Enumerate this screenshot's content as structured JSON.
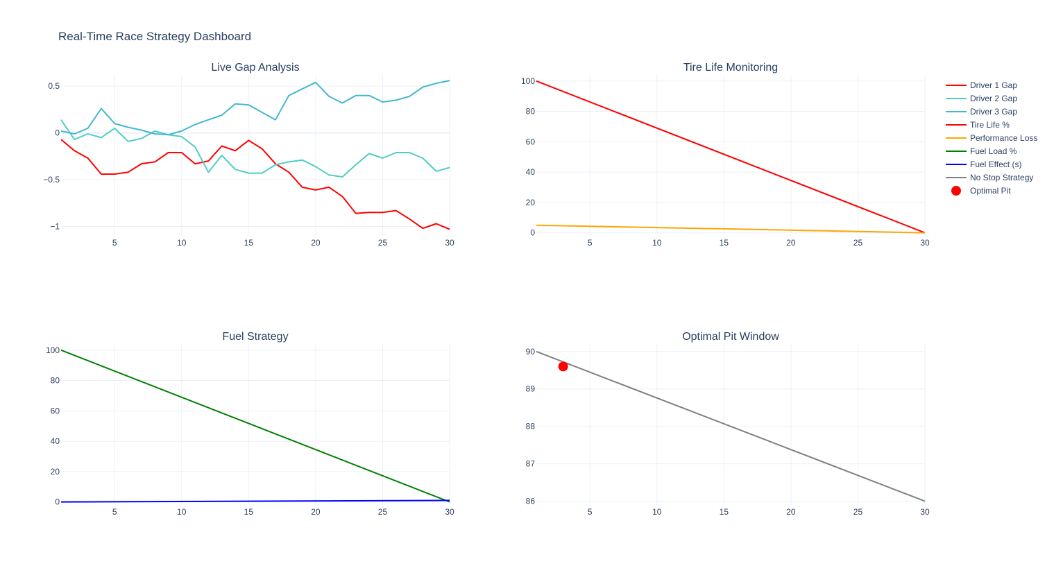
{
  "dashboard": {
    "title": "Real-Time Race Strategy Dashboard"
  },
  "legend": [
    {
      "name": "Driver 1 Gap",
      "color": "#ff0000",
      "symbol": "line"
    },
    {
      "name": "Driver 2 Gap",
      "color": "#4ecdc4",
      "symbol": "line"
    },
    {
      "name": "Driver 3 Gap",
      "color": "#45b7d1",
      "symbol": "line"
    },
    {
      "name": "Tire Life %",
      "color": "#ff0000",
      "symbol": "line"
    },
    {
      "name": "Performance Loss",
      "color": "#ffa500",
      "symbol": "line"
    },
    {
      "name": "Fuel Load %",
      "color": "#008000",
      "symbol": "line"
    },
    {
      "name": "Fuel Effect (s)",
      "color": "#0000ff",
      "symbol": "line"
    },
    {
      "name": "No Stop Strategy",
      "color": "#808080",
      "symbol": "line"
    },
    {
      "name": "Optimal Pit",
      "color": "#ff0000",
      "symbol": "marker"
    }
  ],
  "chart_data": [
    {
      "id": "gap",
      "type": "line",
      "title": "Live Gap Analysis",
      "xlim": [
        1,
        30
      ],
      "ylim": [
        -1.1,
        0.62
      ],
      "xticks": [
        5,
        10,
        15,
        20,
        25,
        30
      ],
      "yticks": [
        {
          "value": 0.5,
          "label": "0.5"
        },
        {
          "value": 0,
          "label": "0"
        },
        {
          "value": -0.5,
          "label": "−0.5"
        },
        {
          "value": -1,
          "label": "−1"
        }
      ],
      "series": [
        {
          "name": "Driver 1 Gap",
          "color": "#ff0000",
          "x": [
            1,
            2,
            3,
            4,
            5,
            6,
            7,
            8,
            9,
            10,
            11,
            12,
            13,
            14,
            15,
            16,
            17,
            18,
            19,
            20,
            21,
            22,
            23,
            24,
            25,
            26,
            27,
            28,
            29,
            30
          ],
          "y": [
            -0.07,
            -0.19,
            -0.27,
            -0.44,
            -0.44,
            -0.42,
            -0.33,
            -0.31,
            -0.21,
            -0.21,
            -0.33,
            -0.3,
            -0.14,
            -0.19,
            -0.08,
            -0.17,
            -0.33,
            -0.42,
            -0.58,
            -0.61,
            -0.58,
            -0.68,
            -0.86,
            -0.85,
            -0.85,
            -0.83,
            -0.92,
            -1.02,
            -0.97,
            -1.03
          ]
        },
        {
          "name": "Driver 2 Gap",
          "color": "#4ecdc4",
          "x": [
            1,
            2,
            3,
            4,
            5,
            6,
            7,
            8,
            9,
            10,
            11,
            12,
            13,
            14,
            15,
            16,
            17,
            18,
            19,
            20,
            21,
            22,
            23,
            24,
            25,
            26,
            27,
            28,
            29,
            30
          ],
          "y": [
            0.14,
            -0.07,
            -0.01,
            -0.05,
            0.05,
            -0.09,
            -0.06,
            0.02,
            -0.02,
            -0.04,
            -0.15,
            -0.42,
            -0.24,
            -0.39,
            -0.43,
            -0.43,
            -0.34,
            -0.31,
            -0.29,
            -0.36,
            -0.45,
            -0.47,
            -0.34,
            -0.22,
            -0.27,
            -0.21,
            -0.21,
            -0.27,
            -0.41,
            -0.37
          ]
        },
        {
          "name": "Driver 3 Gap",
          "color": "#45b7d1",
          "x": [
            1,
            2,
            3,
            4,
            5,
            6,
            7,
            8,
            9,
            10,
            11,
            12,
            13,
            14,
            15,
            16,
            17,
            18,
            19,
            20,
            21,
            22,
            23,
            24,
            25,
            26,
            27,
            28,
            29,
            30
          ],
          "y": [
            0.02,
            -0.01,
            0.05,
            0.26,
            0.1,
            0.06,
            0.03,
            -0.01,
            -0.02,
            0.02,
            0.09,
            0.14,
            0.19,
            0.31,
            0.3,
            0.22,
            0.14,
            0.4,
            0.47,
            0.54,
            0.39,
            0.32,
            0.4,
            0.4,
            0.33,
            0.35,
            0.39,
            0.49,
            0.53,
            0.56
          ]
        }
      ]
    },
    {
      "id": "tire",
      "type": "line",
      "title": "Tire Life Monitoring",
      "xlim": [
        1,
        30
      ],
      "ylim": [
        -2,
        104
      ],
      "xticks": [
        5,
        10,
        15,
        20,
        25,
        30
      ],
      "yticks": [
        {
          "value": 100,
          "label": "100"
        },
        {
          "value": 80,
          "label": "80"
        },
        {
          "value": 60,
          "label": "60"
        },
        {
          "value": 40,
          "label": "40"
        },
        {
          "value": 20,
          "label": "20"
        },
        {
          "value": 0,
          "label": "0"
        }
      ],
      "series": [
        {
          "name": "Tire Life %",
          "color": "#ff0000",
          "x": [
            1,
            30
          ],
          "y": [
            100,
            0
          ]
        },
        {
          "name": "Performance Loss",
          "color": "#ffa500",
          "x": [
            1,
            30
          ],
          "y": [
            5,
            0
          ]
        }
      ]
    },
    {
      "id": "fuel",
      "type": "line",
      "title": "Fuel Strategy",
      "xlim": [
        1,
        30
      ],
      "ylim": [
        -2,
        104
      ],
      "xticks": [
        5,
        10,
        15,
        20,
        25,
        30
      ],
      "yticks": [
        {
          "value": 100,
          "label": "100"
        },
        {
          "value": 80,
          "label": "80"
        },
        {
          "value": 60,
          "label": "60"
        },
        {
          "value": 40,
          "label": "40"
        },
        {
          "value": 20,
          "label": "20"
        },
        {
          "value": 0,
          "label": "0"
        }
      ],
      "series": [
        {
          "name": "Fuel Load %",
          "color": "#008000",
          "x": [
            1,
            30
          ],
          "y": [
            100,
            0
          ]
        },
        {
          "name": "Fuel Effect (s)",
          "color": "#0000ff",
          "x": [
            1,
            30
          ],
          "y": [
            0,
            1
          ]
        }
      ]
    },
    {
      "id": "pit",
      "type": "line",
      "title": "Optimal Pit Window",
      "xlim": [
        1,
        30
      ],
      "ylim": [
        85.9,
        90.2
      ],
      "xticks": [
        5,
        10,
        15,
        20,
        25,
        30
      ],
      "yticks": [
        {
          "value": 90,
          "label": "90"
        },
        {
          "value": 89,
          "label": "89"
        },
        {
          "value": 88,
          "label": "88"
        },
        {
          "value": 87,
          "label": "87"
        },
        {
          "value": 86,
          "label": "86"
        }
      ],
      "series": [
        {
          "name": "No Stop Strategy",
          "color": "#808080",
          "x": [
            1,
            30
          ],
          "y": [
            90,
            86
          ]
        }
      ],
      "markers": [
        {
          "name": "Optimal Pit",
          "color": "#ff0000",
          "x": 3,
          "y": 89.6
        }
      ]
    }
  ]
}
